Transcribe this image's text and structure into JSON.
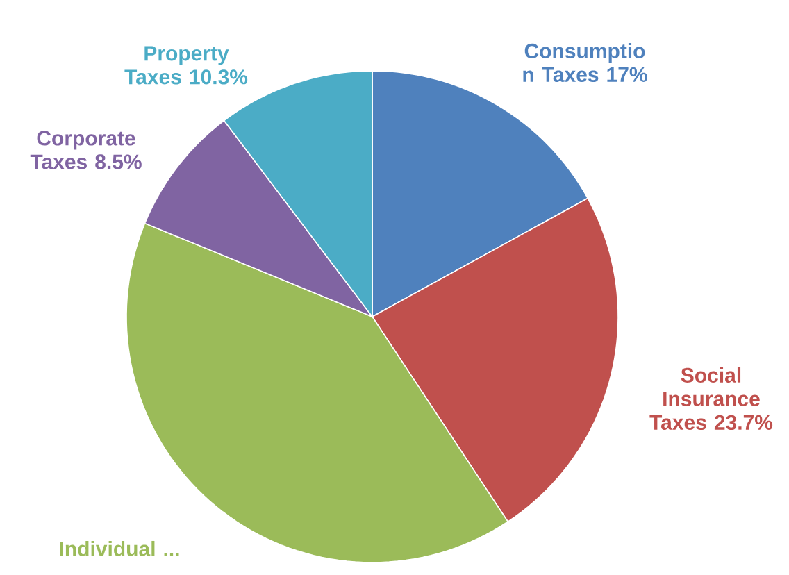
{
  "chart_data": {
    "type": "pie",
    "categories": [
      "Consumptio n Taxes",
      "Social Insurance Taxes",
      "Individual ...",
      "Corporate Taxes",
      "Property Taxes"
    ],
    "values": [
      17,
      23.7,
      40.5,
      8.5,
      10.3
    ],
    "colors": [
      "#4f81bd",
      "#c0504d",
      "#9bbb59",
      "#8064a2",
      "#4bacc6"
    ],
    "value_labels": [
      "17%",
      "23.7%",
      null,
      "8.5%",
      "10.3%"
    ]
  }
}
